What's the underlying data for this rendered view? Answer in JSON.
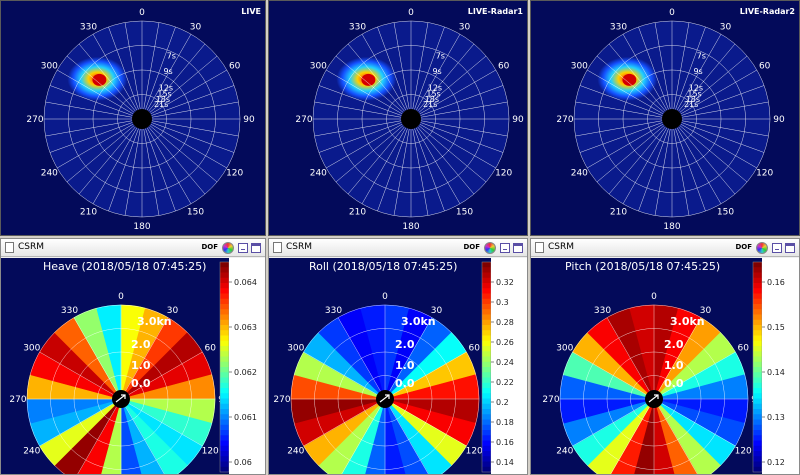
{
  "top_panels": [
    {
      "label": "LIVE"
    },
    {
      "label": "LIVE-Radar1"
    },
    {
      "label": "LIVE-Radar2"
    }
  ],
  "spectrum_axis": {
    "bearing_ticks": [
      "0",
      "30",
      "60",
      "90",
      "120",
      "150",
      "180",
      "210",
      "240",
      "270",
      "300",
      "330"
    ],
    "period_labels": [
      "7s",
      "9s",
      "12s",
      "15s",
      "18s",
      "21s"
    ]
  },
  "bottom_panels": [
    {
      "window_title": "CSRM",
      "dof_label": "DOF",
      "plot_title": "Heave (2018/05/18 07:45:25)",
      "colorbar_ticks": [
        "0.064",
        "0.063",
        "0.062",
        "0.061",
        "0.06"
      ]
    },
    {
      "window_title": "CSRM",
      "dof_label": "DOF",
      "plot_title": "Roll (2018/05/18 07:45:25)",
      "colorbar_ticks": [
        "0.32",
        "0.3",
        "0.28",
        "0.26",
        "0.24",
        "0.22",
        "0.2",
        "0.18",
        "0.16",
        "0.14"
      ]
    },
    {
      "window_title": "CSRM",
      "dof_label": "DOF",
      "plot_title": "Pitch (2018/05/18 07:45:25)",
      "colorbar_ticks": [
        "0.16",
        "0.15",
        "0.14",
        "0.13",
        "0.12"
      ]
    }
  ],
  "speed_labels": [
    "3.0kn",
    "2.0",
    "1.0",
    "0.0"
  ],
  "bearing_ticks_partial": [
    "0",
    "30",
    "60",
    "90",
    "120",
    "150",
    "210",
    "240",
    "270",
    "300",
    "330"
  ],
  "colors": {
    "background": "#030a5a",
    "grid": "#ffffff",
    "window_frame": "#d4d0c8"
  }
}
